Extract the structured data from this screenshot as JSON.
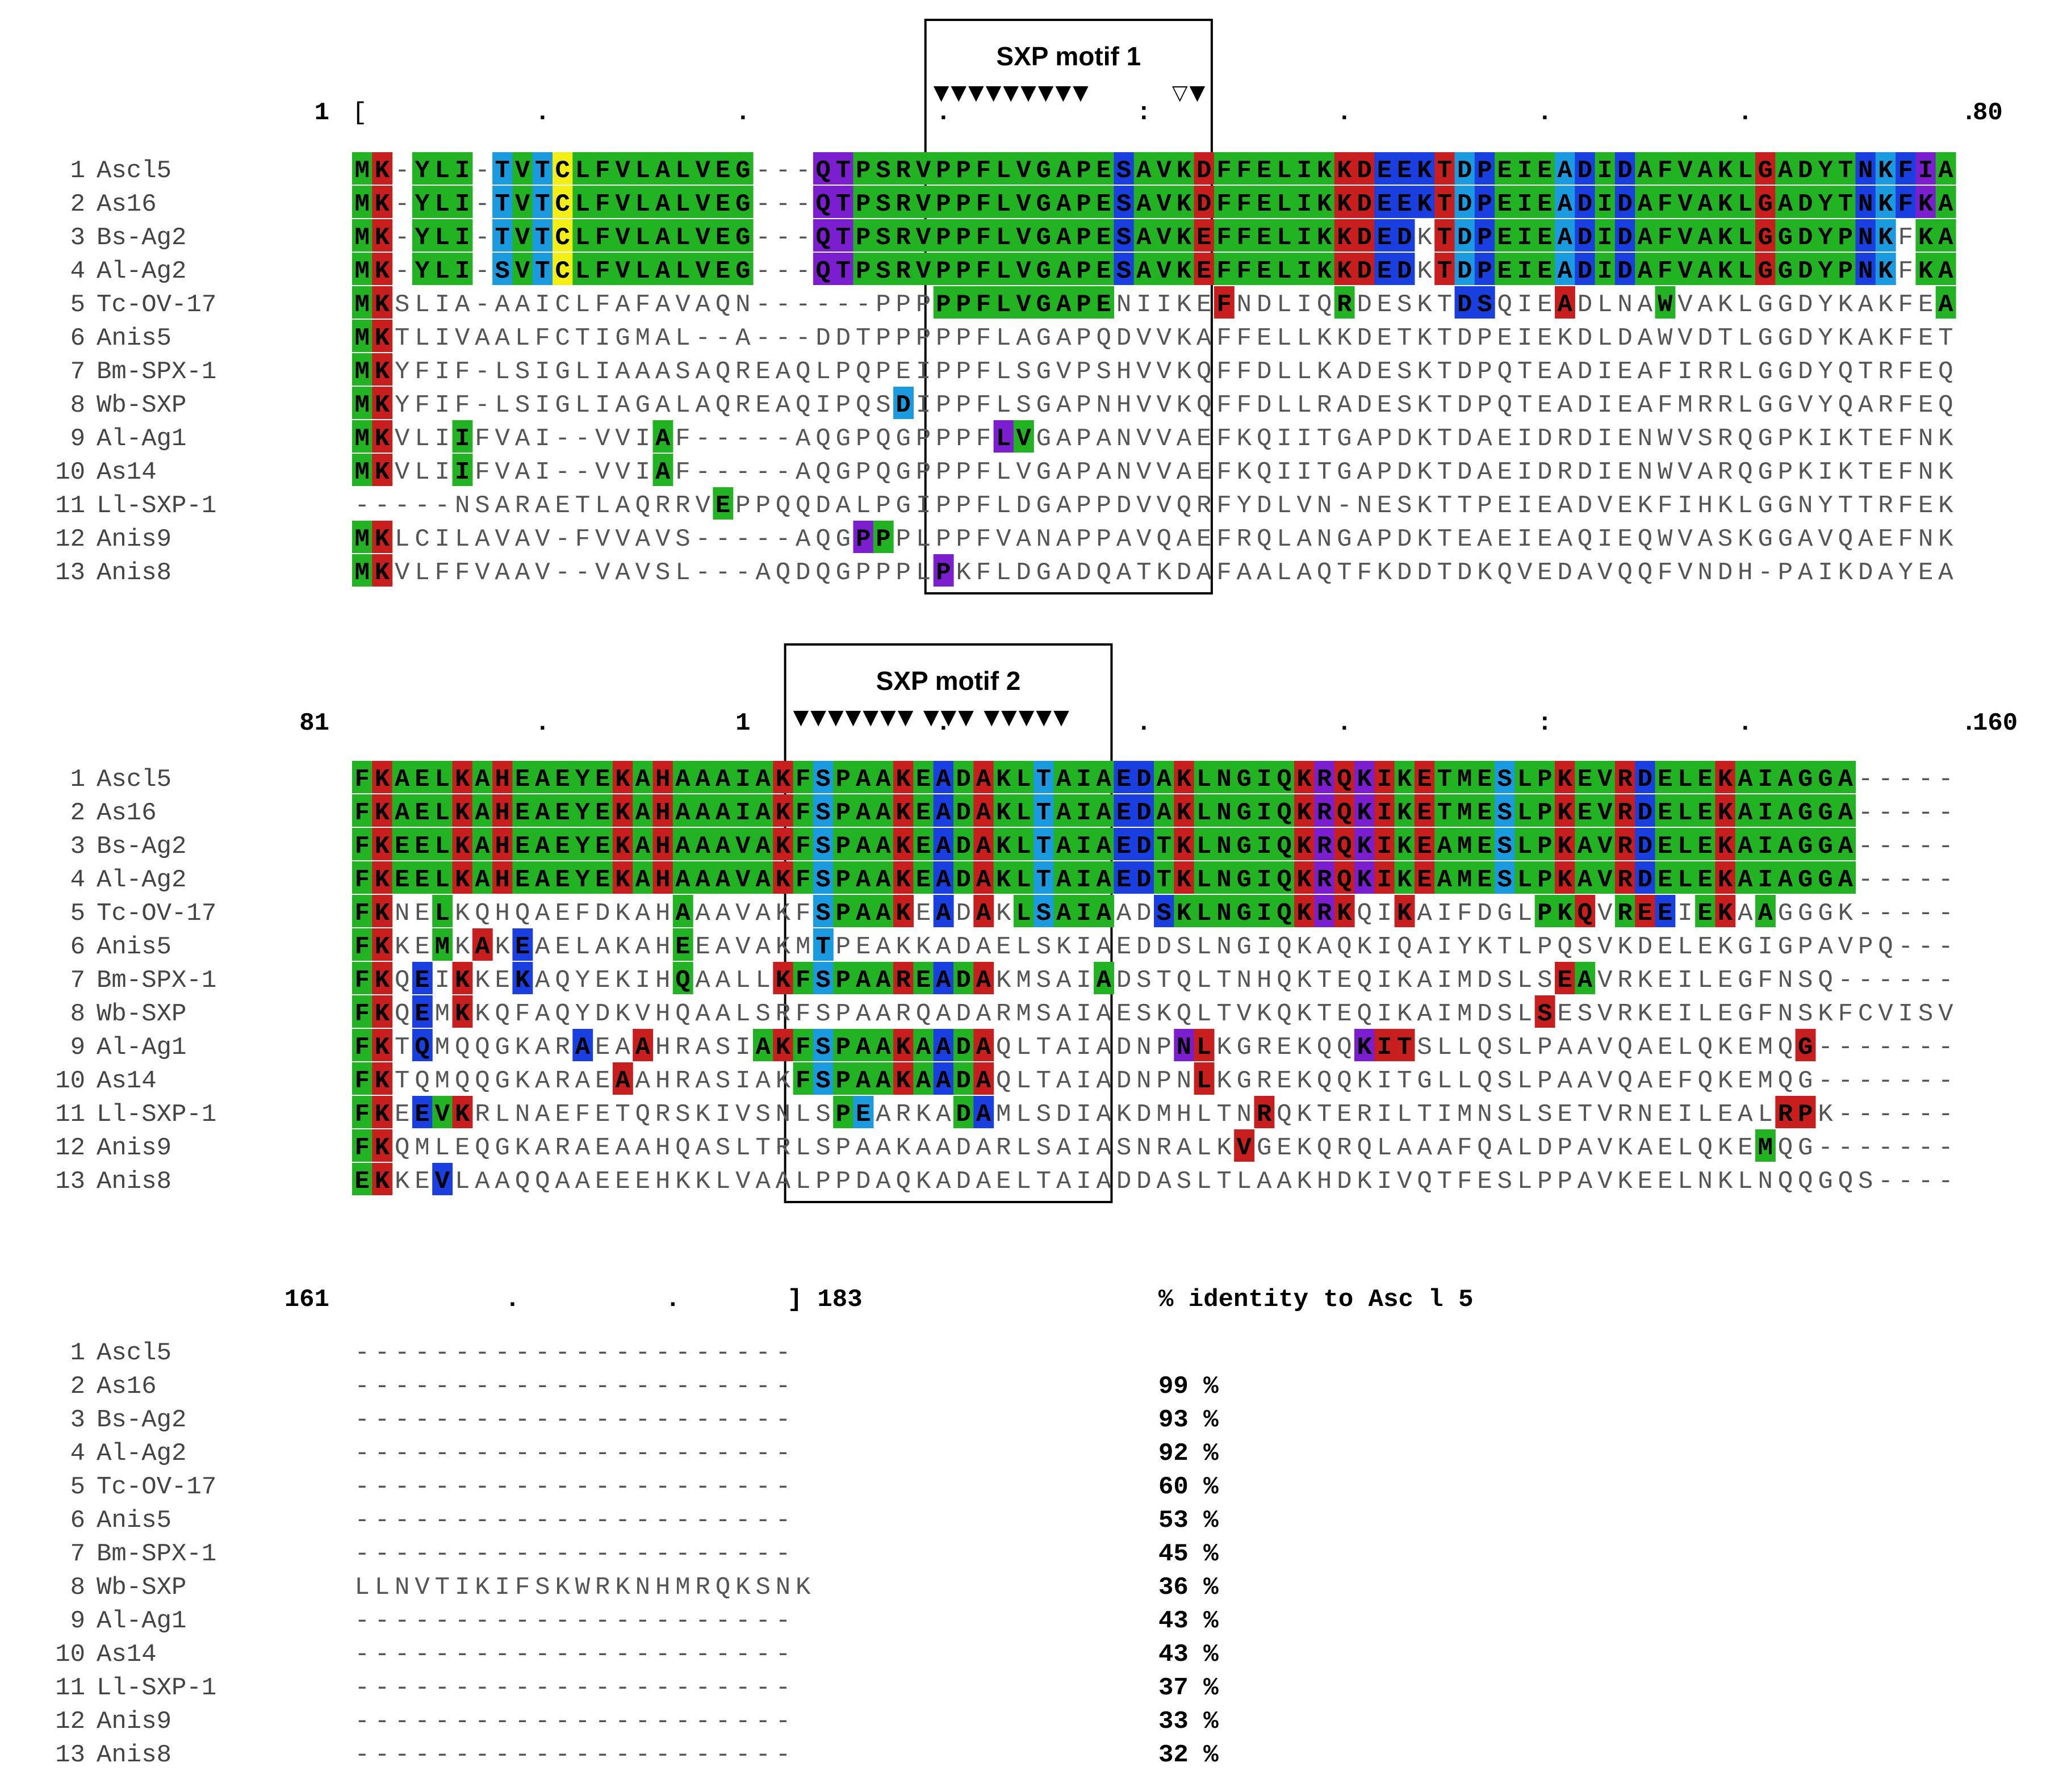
{
  "colors": {
    "G": "#22b322",
    "R": "#c81e1e",
    "B": "#1a3fe0",
    "C": "#1a9be0",
    "P": "#7a1ed0",
    "Y": "#f3ef14",
    "text_on_color": "#000000",
    "text_plain": "#6b6b6b",
    "box": "#000000"
  },
  "row_names": [
    "Ascl5",
    "As16",
    "Bs-Ag2",
    "Al-Ag2",
    "Tc-OV-17",
    "Anis5",
    "Bm-SPX-1",
    "Wb-SXP",
    "Al-Ag1",
    "As14",
    "Ll-SXP-1",
    "Anis9",
    "Anis8"
  ],
  "row_numbers": [
    "1",
    "2",
    "3",
    "4",
    "5",
    "6",
    "7",
    "8",
    "9",
    "10",
    "11",
    "12",
    "13"
  ],
  "blocks": [
    {
      "start_label": "1",
      "open_bracket": "[",
      "end_label": "80",
      "ruler": "............:......",
      "motif": {
        "title": "SXP motif 1",
        "arrows": "▼▼▼▼▼▼▼▼▼",
        "open_arrows": "▽▼",
        "col_start": 29,
        "col_end": 42
      },
      "sequences": [
        "MK-YLI-TVTCLFVLALVEG---QTPSRVPPFLVGAPESAVKDFFELIKKDEEKTDPEIEADIDAFVAKLGADYTNKFIA",
        "MK-YLI-TVTCLFVLALVEG---QTPSRVPPFLVGAPESAVKDFFELIKKDEEKTDPEIEADIDAFVAKLGADYTNKFKA",
        "MK-YLI-TVTCLFVLALVEG---QTPSRVPPFLVGAPESAVKEFFELIKKDEDKTDPEIEADIDAFVAKLGGDYPNKFKA",
        "MK-YLI-SVTCLFVLALVEG---QTPSRVPPFLVGAPESAVKEFFELIKKDEDKTDPEIEADIDAFVAKLGGDYPNKFKA",
        "MKSLIA-AAICLFAFAVAQN------PPPPPFLVGAPENIIKEFNDLIQRDESKTDSQIEADLNAWVAKLGGDYKAKFEA",
        "MKTLIVAALFCTIGMAL--A---DDTPPPPPFLAGAPQDVVKAFFELLKKDETKTDPEIEKDLDAWVDTLGGDYKAKFET",
        "MKYFIF-LSIGLIAAASAQREAQLPQPEIPPFLSGVPSHVVKQFFDLLKADESKTDPQTEADIEAFIRRLGGDYQTRFEQ",
        "MKYFIF-LSIGLIAGALAQREAQIPQSDIPPFLSGAPNHVVKQFFDLLRADESKTDPQTEADIEAFMRRLGGVYQARFEQ",
        "MKVLIIFVAI--VVIAF-----AQGPQGPPPFLVGAPANVVAEFKQIITGAPDKTDAEIDRDIENWVSRQGPKIKTEFNK",
        "MKVLIIFVAI--VVIAF-----AQGPQGPPPFLVGAPANVVAEFKQIITGAPDKTDAEIDRDIENWVARQGPKIKTEFNK",
        "-----NSARAETLAQRRVEPPQQDALPGIPPFLDGAPPDVVQRFYDLVN-NESKTTPEIEADVEKFIHKLGGNYTTRFEK",
        "MKLCILAVAV-FVVAVS-----AQGPPPLPPFVANAPPAVQAEFRQLANGAPDKTEAEIEAQIEQWVASKGGAVQAEFNK",
        "MKVLFFVAAV--VAVSL---AQDQGPPPLPKFLDGADQATKDAFAALAQTFKDDTDKQVEDAVQQFVNDH-PAIKDAYEA"
      ],
      "colors": [
        "GR.GGG.CGCYGGGGGGGGG...PPGGGGGGGGGGGGGBGGGRGGGGGGRRBBBRCBGGGCBGBGGGGGGRGGGGBCBPGGG",
        "GR.GGG.CGCYGGGGGGGGG...PPGGGGGGGGGGGGGBGGGRGGGGGGRRBBBRCBGGGCBGBGGGGGGRGGGGBCBPGGG",
        "GR.GGG.CGCYGGGGGGGGG...PPGGGGGGGGGGGGGBGGGRGGGGGGRRBB.RCBGGGCBGBGGGGGGRGGGGBC.GGGG",
        "GR.GGG.CGCYGGGGGGGGG...PPGGGGGGGGGGGGGBGGGRGGGGGGRRBB.RCBGGGCBGBGGGGGGRGGGGBC.GGGG",
        "GR...........................GGGGGGGGG.....R.....G.....BB...R....G.............GG",
        "GR........................................................................................",
        "GR..........................................................................",
        "GR.........................C..........................................",
        "GR...G.........G....G...........PG.......................",
        "GR...G.........G.....................",
        "..................G.........................................",
        "GR.......................PG.....................",
        "GR...........................P........................................G"
      ]
    },
    {
      "start_label": "81",
      "end_label": "160",
      "ruler": "..1.............:....",
      "motif": {
        "title": "SXP motif 2",
        "arrows": "▼▼▼▼▼▼▼ ▼▼▼ ▼▼▼▼▼",
        "col_start": 22,
        "col_end": 37
      },
      "sequences": [
        "FKAELKAHEAEYEKAHAAAIAKFSPAAKEADAKLTAIAEDAKLNGIQKRQKIKETMESLPKEVRDELEKAIAGGA-----",
        "FKAELKAHEAEYEKAHAAAIAKFSPAAKEADAKLTAIAEDAKLNGIQKRQKIKETMESLPKEVRDELEKAIAGGA-----",
        "FKEELKAHEAEYEKAHAAAVAKFSPAAKEADAKLTAIAEDTKLNGIQKRQKIKEAMESLPKAVRDELEKAIAGGA-----",
        "FKEELKAHEAEYEKAHAAAVAKFSPAAKEADAKLTAIAEDTKLNGIQKRQKIKEAMESLPKAVRDELEKAIAGGA-----",
        "FKNELKQHQAEFDKAHAAAVAKFSPAAKEADAKLSAIAADSKLNGIQKRKQIKAIFDGLPKQVREEIEKAAGGGK-----",
        "FKKEMKAKEAELAKAHEEAVAKMTPEAKKADAELSKIAEDDSLNGIQKAQKIQAIYKTLPQSVKDELEKGIGPAVPQ---",
        "FKQEIKKEKAQYEKIHQAALLKFSPAAREADAKMSAIADSTQLTNHQKTEQIKAIMDSLSEAVRKEILEGFNSQ------",
        "FKQEMKKQFAQYDKVHQAALSRFSPAARQADARMSAIAESKQLTVKQKTEQIKAIMDSLSESVRKEILEGFNSKFCVISV",
        "FKTQMQQGKARAEAAHRASIAKFSPAAKAADAQLTAIADNPNLKGREKQQKITSLLQSLPAAVQAELQKEMQG-------",
        "FKTQMQQGKARAEAAHRASIAKFSPAAKAADAQLTAIADNPNLKGREKQQKITGLLQSLPAAVQAEFQKEMQG-------",
        "FKEEVKRLNAEFETQRSKIVSNLSPEARKADAMLSDIAKDMHLTNRQKTERILTIMNSLSETVRNEILEALRPK------",
        "FKQMLEQGKARAEAAHQASLTRLSPAAKAADARLSAIASNRALKVGEKQRQLAAAFQALDPAVKAELQKEMQG-------",
        "EKKEVLAAQQAAEEEHKKLVAALPPDAQKADAELTAIADDASLTLAAKHDKIVQTFESLPPAVKEELNKLNQQGQS----"
      ],
      "colors": [
        "GRGGGRGRGGGGGRGRGGGGGRGCGGGRGBGRGGCGGGBBGRGGGGGRPRPRGRGGGCGGRGGRBGGGRGGGGGG.....",
        "GRGGGRGRGGGGGRGRGGGGGRGCGGGRGBGRGGCGGGBBGRGGGGGRPRPRGRGGGCGGRGGRBGGGRGGGGGG.....",
        "GRGGGRGRGGGGGRGRGGGGGRGCGGGRGBGRGGCGGGBBGRGGGGGRPRPRGRGGGCGGRGGRBGGGRGGGGGG.....",
        "GRGGGRGRGGGGGRGRGGGGGRGCGGGRGBGRGGCGGGBBGRGGGGGRPRPRGRGGGCGGRGGRBGGGRGGGGGG.....",
        "GR..G...........G......CGGGR.B.R.GCGGG..BGGGGGGRPR..R......GGR.GRB.GR.G.........",
        "GR..G.R.B.......G......C........................................................",
        "GR.B.R..B.......G....RGCGGGRGBGR.....G......................RG..................",
        "GR.B.R.....................................................R....................",
        "GR.B.......B..R.....GRGCGGGRGBGR.........PR.......PRR...................R........",
        "GR...........R........GCGGGRGBGR..........R.....................................",
        "GR.BGR..................GC....GB.............R.........................RR.......",
        "GR..........................................R.........................G.........",
        "GR..B.............................................................................."
      ]
    },
    {
      "start_label": "161",
      "end_label": "] 183",
      "ruler": ". .",
      "sequences": [
        "----------------------",
        "----------------------",
        "----------------------",
        "----------------------",
        "----------------------",
        "----------------------",
        "----------------------",
        "LLNVTIKIFSKWRKNHMRQKSNK",
        "----------------------",
        "----------------------",
        "----------------------",
        "----------------------",
        "----------------------"
      ]
    }
  ],
  "identity": {
    "title": "% identity to Asc l 5",
    "values": [
      "",
      "99 %",
      "93 %",
      "92 %",
      "60 %",
      "53 %",
      "45 %",
      "36 %",
      "43 %",
      "43 %",
      "37 %",
      "33 %",
      "32 %"
    ]
  }
}
